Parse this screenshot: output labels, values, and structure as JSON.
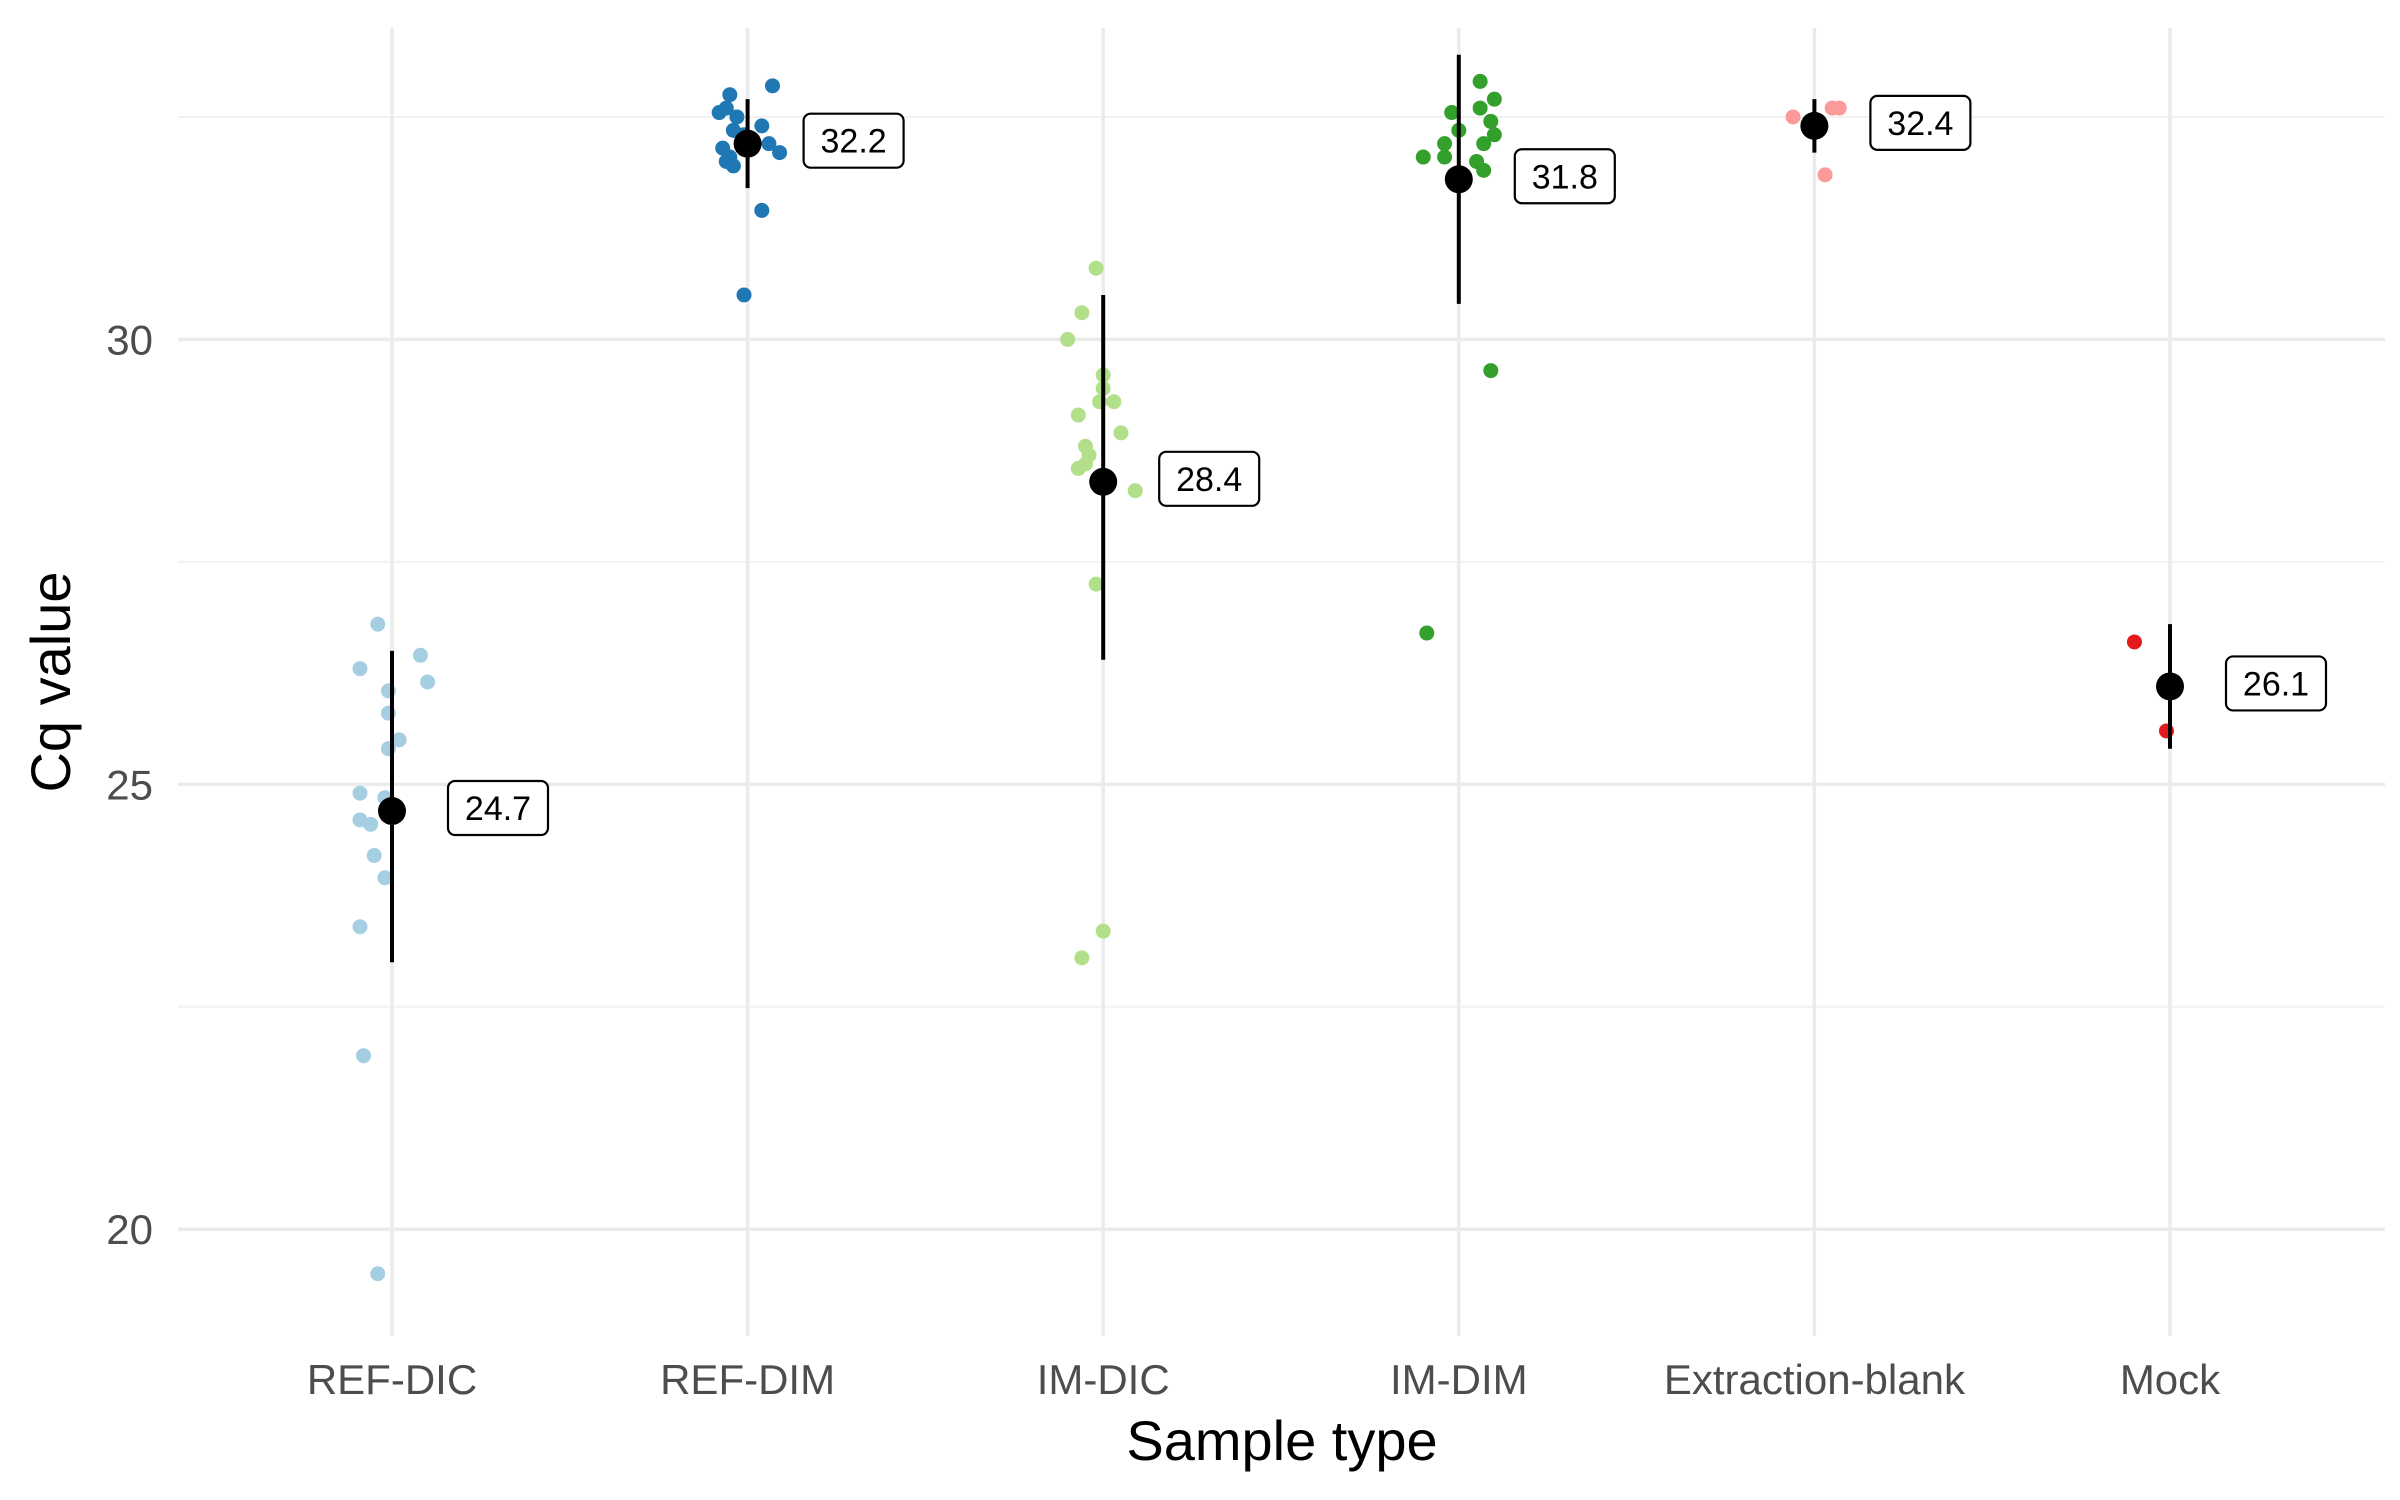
{
  "chart_data": {
    "type": "scatter",
    "xlabel": "Sample type",
    "ylabel": "Cq value",
    "ylim": [
      18.8,
      33.5
    ],
    "yticks": [
      20,
      25,
      30
    ],
    "yminor": [
      22.5,
      27.5,
      32.5
    ],
    "grid": true,
    "legend": "none",
    "categories": [
      "REF-DIC",
      "REF-DIM",
      "IM-DIC",
      "IM-DIM",
      "Extraction-blank",
      "Mock"
    ],
    "series": [
      {
        "category": "REF-DIC",
        "color": "#a6cee3",
        "mean": 24.7,
        "mean_label": "24.7",
        "ci": [
          23.0,
          26.5
        ],
        "points": [
          {
            "x": -0.04,
            "y": 26.8
          },
          {
            "x": -0.09,
            "y": 26.3
          },
          {
            "x": 0.08,
            "y": 26.45
          },
          {
            "x": 0.1,
            "y": 26.15
          },
          {
            "x": -0.01,
            "y": 26.05
          },
          {
            "x": -0.01,
            "y": 25.8
          },
          {
            "x": 0.02,
            "y": 25.5
          },
          {
            "x": -0.01,
            "y": 25.4
          },
          {
            "x": -0.09,
            "y": 24.9
          },
          {
            "x": -0.02,
            "y": 24.85
          },
          {
            "x": -0.09,
            "y": 24.6
          },
          {
            "x": -0.06,
            "y": 24.55
          },
          {
            "x": -0.05,
            "y": 24.2
          },
          {
            "x": -0.02,
            "y": 23.95
          },
          {
            "x": -0.09,
            "y": 23.4
          },
          {
            "x": -0.08,
            "y": 21.95
          },
          {
            "x": -0.04,
            "y": 19.5
          }
        ]
      },
      {
        "category": "REF-DIM",
        "color": "#1f78b4",
        "mean": 32.2,
        "mean_label": "32.2",
        "ci": [
          31.7,
          32.7
        ],
        "points": [
          {
            "x": 0.07,
            "y": 32.85
          },
          {
            "x": -0.05,
            "y": 32.75
          },
          {
            "x": -0.06,
            "y": 32.6
          },
          {
            "x": -0.08,
            "y": 32.55
          },
          {
            "x": -0.03,
            "y": 32.5
          },
          {
            "x": 0.04,
            "y": 32.4
          },
          {
            "x": -0.04,
            "y": 32.35
          },
          {
            "x": -0.01,
            "y": 32.3
          },
          {
            "x": 0.06,
            "y": 32.2
          },
          {
            "x": -0.07,
            "y": 32.15
          },
          {
            "x": 0.09,
            "y": 32.1
          },
          {
            "x": -0.05,
            "y": 32.05
          },
          {
            "x": -0.06,
            "y": 32.0
          },
          {
            "x": -0.04,
            "y": 31.95
          },
          {
            "x": 0.04,
            "y": 31.45
          },
          {
            "x": -0.01,
            "y": 30.5
          }
        ]
      },
      {
        "category": "IM-DIC",
        "color": "#b2df8a",
        "mean": 28.4,
        "mean_label": "28.4",
        "ci": [
          26.4,
          30.5
        ],
        "points": [
          {
            "x": -0.02,
            "y": 30.8
          },
          {
            "x": -0.06,
            "y": 30.3
          },
          {
            "x": -0.1,
            "y": 30.0
          },
          {
            "x": 0.0,
            "y": 29.6
          },
          {
            "x": 0.0,
            "y": 29.45
          },
          {
            "x": 0.03,
            "y": 29.3
          },
          {
            "x": -0.01,
            "y": 29.3
          },
          {
            "x": -0.07,
            "y": 29.15
          },
          {
            "x": 0.05,
            "y": 28.95
          },
          {
            "x": -0.05,
            "y": 28.8
          },
          {
            "x": -0.04,
            "y": 28.7
          },
          {
            "x": -0.05,
            "y": 28.6
          },
          {
            "x": -0.07,
            "y": 28.55
          },
          {
            "x": 0.09,
            "y": 28.3
          },
          {
            "x": -0.02,
            "y": 27.25
          },
          {
            "x": 0.0,
            "y": 23.35
          },
          {
            "x": -0.06,
            "y": 23.05
          }
        ]
      },
      {
        "category": "IM-DIM",
        "color": "#33a02c",
        "mean": 31.8,
        "mean_label": "31.8",
        "ci": [
          30.4,
          33.2
        ],
        "points": [
          {
            "x": 0.06,
            "y": 32.9
          },
          {
            "x": 0.1,
            "y": 32.7
          },
          {
            "x": -0.02,
            "y": 32.55
          },
          {
            "x": 0.06,
            "y": 32.6
          },
          {
            "x": 0.09,
            "y": 32.45
          },
          {
            "x": 0.1,
            "y": 32.3
          },
          {
            "x": 0.0,
            "y": 32.35
          },
          {
            "x": -0.04,
            "y": 32.2
          },
          {
            "x": 0.07,
            "y": 32.2
          },
          {
            "x": -0.1,
            "y": 32.05
          },
          {
            "x": -0.04,
            "y": 32.05
          },
          {
            "x": 0.05,
            "y": 32.0
          },
          {
            "x": 0.07,
            "y": 31.9
          },
          {
            "x": 0.09,
            "y": 29.65
          },
          {
            "x": -0.09,
            "y": 26.7
          }
        ]
      },
      {
        "category": "Extraction-blank",
        "color": "#fb9a99",
        "mean": 32.4,
        "mean_label": "32.4",
        "ci": [
          32.1,
          32.7
        ],
        "points": [
          {
            "x": -0.06,
            "y": 32.5
          },
          {
            "x": 0.05,
            "y": 32.6
          },
          {
            "x": 0.07,
            "y": 32.6
          },
          {
            "x": 0.03,
            "y": 31.85
          }
        ]
      },
      {
        "category": "Mock",
        "color": "#e31a1c",
        "mean": 26.1,
        "mean_label": "26.1",
        "ci": [
          25.4,
          26.8
        ],
        "points": [
          {
            "x": -0.1,
            "y": 26.6
          },
          {
            "x": -0.01,
            "y": 25.6
          }
        ]
      }
    ]
  }
}
